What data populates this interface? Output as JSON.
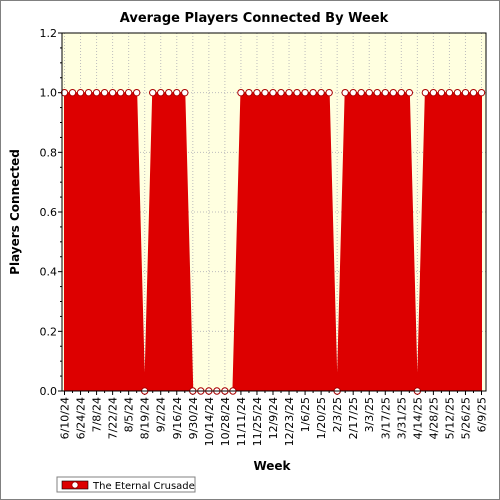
{
  "chart_data": {
    "type": "area",
    "title": "Average Players Connected By Week",
    "xlabel": "Week",
    "ylabel": "Players Connected",
    "ylim": [
      0,
      1.2
    ],
    "yticks": [
      "0.0",
      "0.2",
      "0.4",
      "0.6",
      "0.8",
      "1.0",
      "1.2"
    ],
    "x_tick_labels": [
      "6/10/24",
      "6/24/24",
      "7/8/24",
      "7/22/24",
      "8/5/24",
      "8/19/24",
      "9/2/24",
      "9/16/24",
      "9/30/24",
      "10/14/24",
      "10/28/24",
      "11/11/24",
      "11/25/24",
      "12/9/24",
      "12/23/24",
      "1/6/25",
      "1/20/25",
      "2/3/25",
      "2/17/25",
      "3/3/25",
      "3/17/25",
      "3/31/25",
      "4/14/25",
      "4/28/25",
      "5/12/25",
      "5/26/25",
      "6/9/25"
    ],
    "x": [
      "6/10/24",
      "6/17/24",
      "6/24/24",
      "7/1/24",
      "7/8/24",
      "7/15/24",
      "7/22/24",
      "7/29/24",
      "8/5/24",
      "8/12/24",
      "8/19/24",
      "8/26/24",
      "9/2/24",
      "9/9/24",
      "9/16/24",
      "9/23/24",
      "9/30/24",
      "10/7/24",
      "10/14/24",
      "10/21/24",
      "10/28/24",
      "11/4/24",
      "11/11/24",
      "11/18/24",
      "11/25/24",
      "12/2/24",
      "12/9/24",
      "12/16/24",
      "12/23/24",
      "12/30/24",
      "1/6/25",
      "1/13/25",
      "1/20/25",
      "1/27/25",
      "2/3/25",
      "2/10/25",
      "2/17/25",
      "2/24/25",
      "3/3/25",
      "3/10/25",
      "3/17/25",
      "3/24/25",
      "3/31/25",
      "4/7/25",
      "4/14/25",
      "4/21/25",
      "4/28/25",
      "5/5/25",
      "5/12/25",
      "5/19/25",
      "5/26/25",
      "6/2/25",
      "6/9/25"
    ],
    "series": [
      {
        "name": "The Eternal Crusade",
        "color": "#dd0000",
        "values": [
          1,
          1,
          1,
          1,
          1,
          1,
          1,
          1,
          1,
          1,
          0,
          1,
          1,
          1,
          1,
          1,
          0,
          0,
          0,
          0,
          0,
          0,
          1,
          1,
          1,
          1,
          1,
          1,
          1,
          1,
          1,
          1,
          1,
          1,
          0,
          1,
          1,
          1,
          1,
          1,
          1,
          1,
          1,
          1,
          0,
          1,
          1,
          1,
          1,
          1,
          1,
          1,
          1
        ]
      }
    ],
    "grid": true,
    "legend": "bottom-left",
    "plot_background": "#ffffe0"
  }
}
